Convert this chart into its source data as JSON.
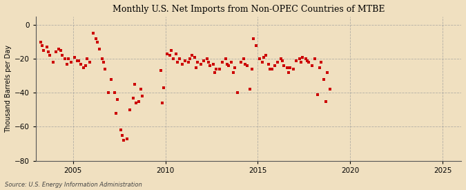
{
  "title": "Monthly U.S. Net Imports from Non-OPEC Countries of MTBE",
  "ylabel": "Thousand Barrels per Day",
  "source": "Source: U.S. Energy Information Administration",
  "background_color": "#f0e0c0",
  "plot_bg_color": "#f0e0c0",
  "marker_color": "#cc0000",
  "marker_size": 6,
  "xlim": [
    2003.0,
    2026.0
  ],
  "ylim": [
    -80,
    5
  ],
  "xticks": [
    2005,
    2010,
    2015,
    2020,
    2025
  ],
  "yticks": [
    0,
    -20,
    -40,
    -60,
    -80
  ],
  "data": [
    [
      2003.25,
      -10
    ],
    [
      2003.42,
      -15
    ],
    [
      2003.58,
      -13
    ],
    [
      2003.75,
      -18
    ],
    [
      2003.92,
      -22
    ],
    [
      2004.08,
      -16
    ],
    [
      2004.25,
      -14
    ],
    [
      2004.42,
      -18
    ],
    [
      2004.58,
      -20
    ],
    [
      2004.75,
      -20
    ],
    [
      2004.92,
      -22
    ],
    [
      2005.08,
      -19
    ],
    [
      2005.25,
      -21
    ],
    [
      2005.42,
      -23
    ],
    [
      2005.58,
      -25
    ],
    [
      2005.75,
      -20
    ],
    [
      2005.92,
      -22
    ],
    [
      2006.08,
      -5
    ],
    [
      2006.25,
      -8
    ],
    [
      2006.42,
      -14
    ],
    [
      2006.58,
      -20
    ],
    [
      2006.75,
      -26
    ],
    [
      2006.92,
      -40
    ],
    [
      2007.08,
      -32
    ],
    [
      2007.25,
      -40
    ],
    [
      2007.42,
      -44
    ],
    [
      2007.58,
      -62
    ],
    [
      2007.75,
      -68
    ],
    [
      2007.92,
      -67
    ],
    [
      2008.08,
      -50
    ],
    [
      2008.25,
      -43
    ],
    [
      2008.42,
      -46
    ],
    [
      2008.58,
      -45
    ],
    [
      2008.75,
      -42
    ],
    [
      2009.75,
      -27
    ],
    [
      2009.92,
      -37
    ],
    [
      2010.08,
      -17
    ],
    [
      2010.25,
      -18
    ],
    [
      2010.42,
      -20
    ],
    [
      2010.58,
      -17
    ],
    [
      2010.75,
      -20
    ],
    [
      2010.92,
      -23
    ],
    [
      2011.08,
      -21
    ],
    [
      2011.25,
      -22
    ],
    [
      2011.42,
      -18
    ],
    [
      2011.58,
      -19
    ],
    [
      2011.75,
      -22
    ],
    [
      2011.92,
      -23
    ],
    [
      2012.08,
      -21
    ],
    [
      2012.25,
      -20
    ],
    [
      2012.42,
      -24
    ],
    [
      2012.58,
      -23
    ],
    [
      2012.75,
      -26
    ],
    [
      2012.92,
      -26
    ],
    [
      2013.08,
      -22
    ],
    [
      2013.25,
      -20
    ],
    [
      2013.42,
      -24
    ],
    [
      2013.58,
      -22
    ],
    [
      2013.75,
      -25
    ],
    [
      2013.92,
      -40
    ],
    [
      2014.08,
      -22
    ],
    [
      2014.25,
      -20
    ],
    [
      2014.42,
      -24
    ],
    [
      2014.58,
      -38
    ],
    [
      2014.75,
      -8
    ],
    [
      2014.92,
      -12
    ],
    [
      2015.08,
      -20
    ],
    [
      2015.25,
      -22
    ],
    [
      2015.42,
      -18
    ],
    [
      2015.58,
      -23
    ],
    [
      2015.75,
      -26
    ],
    [
      2015.92,
      -24
    ],
    [
      2016.08,
      -22
    ],
    [
      2016.25,
      -20
    ],
    [
      2016.42,
      -24
    ],
    [
      2016.58,
      -25
    ],
    [
      2016.75,
      -25
    ],
    [
      2016.92,
      -26
    ],
    [
      2017.08,
      -21
    ],
    [
      2017.25,
      -20
    ],
    [
      2017.42,
      -19
    ],
    [
      2017.58,
      -20
    ],
    [
      2017.75,
      -22
    ],
    [
      2017.92,
      -24
    ],
    [
      2018.08,
      -20
    ],
    [
      2018.25,
      -41
    ],
    [
      2018.42,
      -22
    ],
    [
      2018.58,
      -32
    ],
    [
      2018.75,
      -28
    ],
    [
      2018.92,
      -38
    ],
    [
      2003.33,
      -12
    ],
    [
      2003.67,
      -16
    ],
    [
      2004.33,
      -15
    ],
    [
      2004.67,
      -23
    ],
    [
      2005.33,
      -21
    ],
    [
      2005.67,
      -24
    ],
    [
      2006.33,
      -10
    ],
    [
      2006.67,
      -22
    ],
    [
      2007.33,
      -52
    ],
    [
      2007.67,
      -65
    ],
    [
      2008.33,
      -35
    ],
    [
      2008.67,
      -38
    ],
    [
      2009.83,
      -46
    ],
    [
      2010.33,
      -15
    ],
    [
      2010.67,
      -22
    ],
    [
      2011.33,
      -20
    ],
    [
      2011.67,
      -25
    ],
    [
      2012.33,
      -22
    ],
    [
      2012.67,
      -28
    ],
    [
      2013.33,
      -23
    ],
    [
      2013.67,
      -28
    ],
    [
      2014.33,
      -23
    ],
    [
      2014.67,
      -26
    ],
    [
      2015.33,
      -19
    ],
    [
      2015.67,
      -26
    ],
    [
      2016.33,
      -21
    ],
    [
      2016.67,
      -28
    ],
    [
      2017.33,
      -22
    ],
    [
      2017.67,
      -21
    ],
    [
      2018.33,
      -25
    ],
    [
      2018.67,
      -45
    ]
  ]
}
